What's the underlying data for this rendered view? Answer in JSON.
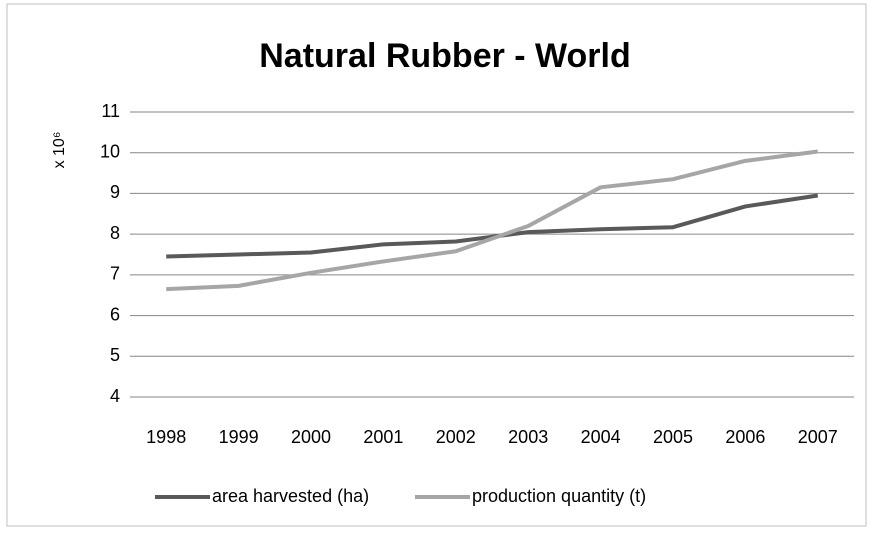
{
  "chart_data": {
    "type": "line",
    "title": "Natural Rubber - World",
    "y_label": "x 10⁶",
    "categories": [
      "1998",
      "1999",
      "2000",
      "2001",
      "2002",
      "2003",
      "2004",
      "2005",
      "2006",
      "2007"
    ],
    "series": [
      {
        "name": "area harvested (ha)",
        "color": "#595959",
        "values": [
          7.45,
          7.5,
          7.55,
          7.75,
          7.82,
          8.05,
          8.12,
          8.17,
          8.68,
          8.95
        ]
      },
      {
        "name": "production quantity (t)",
        "color": "#a6a6a6",
        "values": [
          6.65,
          6.73,
          7.05,
          7.33,
          7.58,
          8.2,
          9.15,
          9.35,
          9.8,
          10.03
        ]
      }
    ],
    "ylim": [
      4,
      11
    ],
    "yticks": [
      4,
      5,
      6,
      7,
      8,
      9,
      10,
      11
    ],
    "grid": true,
    "legend": "bottom"
  }
}
